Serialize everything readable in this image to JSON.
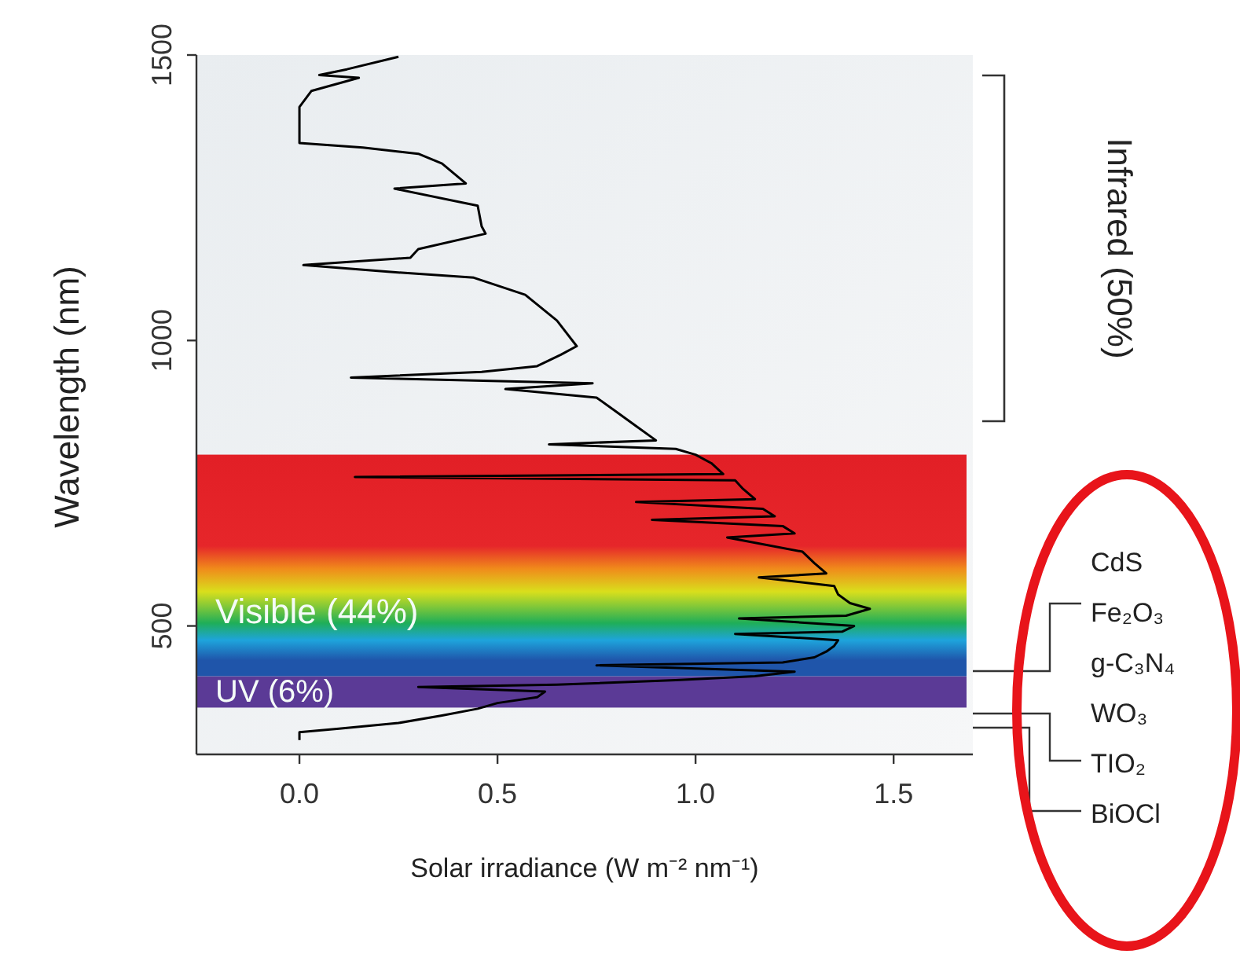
{
  "chart_data": {
    "type": "line",
    "xlabel": "Solar irradiance (W m⁻² nm⁻¹)",
    "ylabel": "Wavelength (nm)",
    "xlim": [
      -0.26,
      1.7
    ],
    "xticks": [
      {
        "value": 0,
        "label": "0.0"
      },
      0.5,
      {
        "value": 1,
        "label": "1.0"
      },
      1.5
    ],
    "ylim": [
      275,
      1500
    ],
    "yticks": [
      500,
      1000,
      1500
    ],
    "series": [
      {
        "color": "#000000",
        "x": [
          0.0,
          0.0,
          0.1,
          0.25,
          0.36,
          0.45,
          0.5,
          0.6,
          0.62,
          0.3,
          0.65,
          0.95,
          1.15,
          1.25,
          0.75,
          1.22,
          1.3,
          1.33,
          1.35,
          1.36,
          1.1,
          1.37,
          1.4,
          1.11,
          1.38,
          1.44,
          1.39,
          1.36,
          1.35,
          1.16,
          1.33,
          1.3,
          1.27,
          1.08,
          1.25,
          1.22,
          0.89,
          1.2,
          1.17,
          0.85,
          1.15,
          1.12,
          1.1,
          0.14,
          1.07,
          1.04,
          1.0,
          0.95,
          0.63,
          0.9,
          0.85,
          0.8,
          0.75,
          0.52,
          0.74,
          0.13,
          0.46,
          0.6,
          0.66,
          0.7,
          0.65,
          0.57,
          0.44,
          0.23,
          0.01,
          0.28,
          0.3,
          0.47,
          0.46,
          0.45,
          0.24,
          0.42,
          0.36,
          0.3,
          0.16,
          0.0,
          0.0,
          0.03,
          0.15,
          0.05,
          0.12,
          0.25
        ],
        "values": [
          300,
          314,
          320,
          330,
          343,
          355,
          365,
          375,
          385,
          393,
          397,
          405,
          412,
          420,
          431,
          436,
          445,
          455,
          465,
          475,
          486,
          490,
          500,
          513,
          518,
          530,
          540,
          555,
          570,
          585,
          592,
          610,
          630,
          655,
          662,
          675,
          686,
          692,
          705,
          717,
          722,
          740,
          755,
          761,
          766,
          785,
          800,
          810,
          818,
          825,
          850,
          875,
          900,
          915,
          925,
          935,
          945,
          955,
          975,
          990,
          1035,
          1080,
          1110,
          1120,
          1132,
          1145,
          1160,
          1187,
          1200,
          1236,
          1266,
          1275,
          1310,
          1327,
          1338,
          1346,
          1409,
          1437,
          1460,
          1465,
          1475,
          1497
        ]
      }
    ],
    "bands": [
      {
        "axis": "y",
        "from": 357,
        "to": 412,
        "label": "UV (6%)",
        "color": "#5b3a96"
      },
      {
        "axis": "y",
        "from": 412,
        "to": 800,
        "label": "Visible (44%)"
      }
    ],
    "annotations": [
      "Infrared (50%)",
      "CdS",
      "Fe₂O₃",
      "g-C₃N₄",
      "WO₃",
      "TIO₂",
      "BiOCl"
    ]
  }
}
